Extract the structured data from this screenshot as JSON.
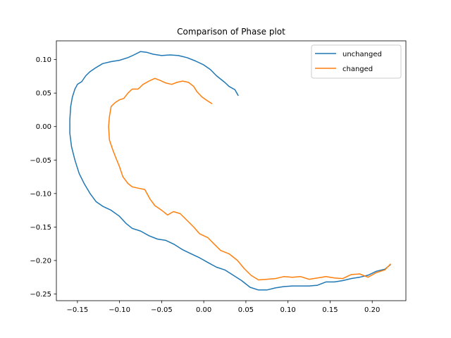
{
  "chart_data": {
    "type": "line",
    "title": "Comparison of Phase plot",
    "xlabel": "",
    "ylabel": "",
    "xlim": [
      -0.175,
      0.24
    ],
    "ylim": [
      -0.26,
      0.128
    ],
    "x_ticks": [
      -0.15,
      -0.1,
      -0.05,
      0.0,
      0.05,
      0.1,
      0.15,
      0.2
    ],
    "x_tick_labels": [
      "−0.15",
      "−0.10",
      "−0.05",
      "0.00",
      "0.05",
      "0.10",
      "0.15",
      "0.20"
    ],
    "y_ticks": [
      0.1,
      0.05,
      0.0,
      -0.05,
      -0.1,
      -0.15,
      -0.2,
      -0.25
    ],
    "y_tick_labels": [
      "0.10",
      "0.05",
      "0.00",
      "−0.05",
      "−0.10",
      "−0.15",
      "−0.20",
      "−0.25"
    ],
    "grid": false,
    "legend_position": "top-right",
    "series": [
      {
        "name": "unchanged",
        "color": "#1f77b4",
        "points": [
          [
            0.041,
            0.046
          ],
          [
            0.037,
            0.055
          ],
          [
            0.03,
            0.06
          ],
          [
            0.025,
            0.066
          ],
          [
            0.015,
            0.076
          ],
          [
            0.008,
            0.085
          ],
          [
            0.0,
            0.092
          ],
          [
            -0.01,
            0.098
          ],
          [
            -0.02,
            0.103
          ],
          [
            -0.03,
            0.106
          ],
          [
            -0.04,
            0.107
          ],
          [
            -0.05,
            0.106
          ],
          [
            -0.06,
            0.108
          ],
          [
            -0.068,
            0.111
          ],
          [
            -0.075,
            0.112
          ],
          [
            -0.083,
            0.107
          ],
          [
            -0.09,
            0.103
          ],
          [
            -0.1,
            0.099
          ],
          [
            -0.11,
            0.097
          ],
          [
            -0.12,
            0.094
          ],
          [
            -0.128,
            0.088
          ],
          [
            -0.135,
            0.082
          ],
          [
            -0.14,
            0.076
          ],
          [
            -0.145,
            0.067
          ],
          [
            -0.15,
            0.063
          ],
          [
            -0.153,
            0.056
          ],
          [
            -0.156,
            0.044
          ],
          [
            -0.158,
            0.03
          ],
          [
            -0.159,
            0.01
          ],
          [
            -0.159,
            -0.01
          ],
          [
            -0.157,
            -0.03
          ],
          [
            -0.153,
            -0.05
          ],
          [
            -0.148,
            -0.07
          ],
          [
            -0.142,
            -0.085
          ],
          [
            -0.135,
            -0.1
          ],
          [
            -0.128,
            -0.112
          ],
          [
            -0.12,
            -0.119
          ],
          [
            -0.11,
            -0.125
          ],
          [
            -0.1,
            -0.134
          ],
          [
            -0.092,
            -0.145
          ],
          [
            -0.085,
            -0.152
          ],
          [
            -0.075,
            -0.156
          ],
          [
            -0.065,
            -0.163
          ],
          [
            -0.055,
            -0.168
          ],
          [
            -0.045,
            -0.17
          ],
          [
            -0.035,
            -0.176
          ],
          [
            -0.025,
            -0.184
          ],
          [
            -0.015,
            -0.19
          ],
          [
            -0.005,
            -0.196
          ],
          [
            0.005,
            -0.203
          ],
          [
            0.015,
            -0.21
          ],
          [
            0.025,
            -0.214
          ],
          [
            0.035,
            -0.222
          ],
          [
            0.045,
            -0.23
          ],
          [
            0.055,
            -0.24
          ],
          [
            0.065,
            -0.244
          ],
          [
            0.075,
            -0.244
          ],
          [
            0.085,
            -0.241
          ],
          [
            0.095,
            -0.239
          ],
          [
            0.105,
            -0.238
          ],
          [
            0.115,
            -0.238
          ],
          [
            0.125,
            -0.238
          ],
          [
            0.135,
            -0.237
          ],
          [
            0.145,
            -0.232
          ],
          [
            0.155,
            -0.232
          ],
          [
            0.165,
            -0.23
          ],
          [
            0.175,
            -0.227
          ],
          [
            0.185,
            -0.225
          ],
          [
            0.195,
            -0.222
          ],
          [
            0.205,
            -0.216
          ],
          [
            0.215,
            -0.213
          ],
          [
            0.222,
            -0.206
          ]
        ]
      },
      {
        "name": "changed",
        "color": "#ff7f0e",
        "points": [
          [
            0.01,
            0.034
          ],
          [
            0.005,
            0.038
          ],
          [
            -0.002,
            0.044
          ],
          [
            -0.008,
            0.052
          ],
          [
            -0.012,
            0.06
          ],
          [
            -0.018,
            0.066
          ],
          [
            -0.025,
            0.068
          ],
          [
            -0.032,
            0.066
          ],
          [
            -0.038,
            0.063
          ],
          [
            -0.045,
            0.065
          ],
          [
            -0.052,
            0.069
          ],
          [
            -0.058,
            0.072
          ],
          [
            -0.065,
            0.068
          ],
          [
            -0.072,
            0.063
          ],
          [
            -0.078,
            0.056
          ],
          [
            -0.085,
            0.056
          ],
          [
            -0.09,
            0.05
          ],
          [
            -0.095,
            0.042
          ],
          [
            -0.1,
            0.04
          ],
          [
            -0.105,
            0.036
          ],
          [
            -0.11,
            0.03
          ],
          [
            -0.112,
            0.015
          ],
          [
            -0.113,
            0.0
          ],
          [
            -0.112,
            -0.02
          ],
          [
            -0.108,
            -0.035
          ],
          [
            -0.104,
            -0.048
          ],
          [
            -0.1,
            -0.06
          ],
          [
            -0.096,
            -0.075
          ],
          [
            -0.09,
            -0.085
          ],
          [
            -0.085,
            -0.09
          ],
          [
            -0.078,
            -0.092
          ],
          [
            -0.07,
            -0.094
          ],
          [
            -0.064,
            -0.108
          ],
          [
            -0.058,
            -0.118
          ],
          [
            -0.05,
            -0.125
          ],
          [
            -0.043,
            -0.132
          ],
          [
            -0.036,
            -0.127
          ],
          [
            -0.028,
            -0.13
          ],
          [
            -0.02,
            -0.14
          ],
          [
            -0.012,
            -0.15
          ],
          [
            -0.005,
            -0.16
          ],
          [
            0.005,
            -0.166
          ],
          [
            0.012,
            -0.175
          ],
          [
            0.02,
            -0.185
          ],
          [
            0.03,
            -0.19
          ],
          [
            0.04,
            -0.2
          ],
          [
            0.048,
            -0.212
          ],
          [
            0.056,
            -0.222
          ],
          [
            0.065,
            -0.229
          ],
          [
            0.075,
            -0.228
          ],
          [
            0.085,
            -0.227
          ],
          [
            0.095,
            -0.224
          ],
          [
            0.105,
            -0.225
          ],
          [
            0.115,
            -0.224
          ],
          [
            0.125,
            -0.228
          ],
          [
            0.135,
            -0.226
          ],
          [
            0.145,
            -0.224
          ],
          [
            0.155,
            -0.226
          ],
          [
            0.165,
            -0.227
          ],
          [
            0.175,
            -0.221
          ],
          [
            0.185,
            -0.22
          ],
          [
            0.195,
            -0.225
          ],
          [
            0.205,
            -0.218
          ],
          [
            0.215,
            -0.214
          ],
          [
            0.222,
            -0.205
          ]
        ]
      }
    ]
  }
}
